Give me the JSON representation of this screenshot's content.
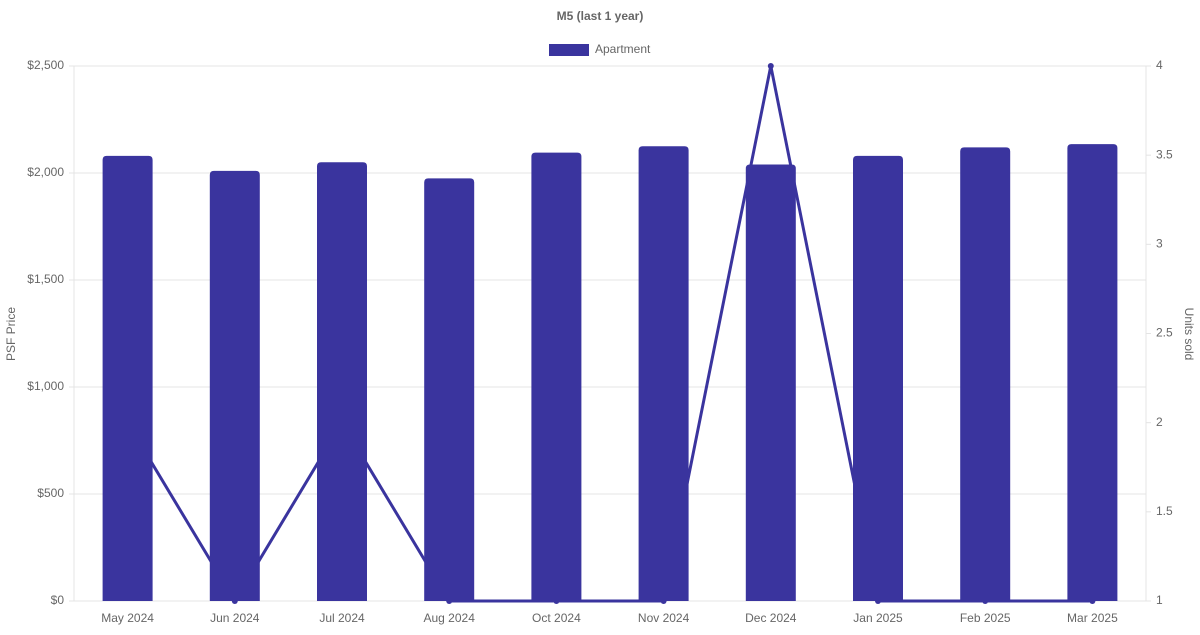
{
  "chart_data": {
    "type": "bar-line",
    "title": "M5 (last 1 year)",
    "categories": [
      "May 2024",
      "Jun 2024",
      "Jul 2024",
      "Aug 2024",
      "Oct 2024",
      "Nov 2024",
      "Dec 2024",
      "Jan 2025",
      "Feb 2025",
      "Mar 2025"
    ],
    "series": [
      {
        "name": "Apartment",
        "type": "bar",
        "color": "#3a349e",
        "values": [
          2080,
          2010,
          2050,
          1975,
          2095,
          2125,
          2040,
          2080,
          2120,
          2135
        ]
      },
      {
        "type": "line",
        "axis": "y2",
        "color": "#3a349e",
        "values": [
          2,
          1,
          2,
          1,
          1,
          1,
          4,
          1,
          1,
          1
        ]
      }
    ],
    "ylabel": "PSF Price",
    "y2label": "Units sold",
    "ylim": [
      0,
      2500
    ],
    "yticks": [
      {
        "value": 0,
        "label": "$0"
      },
      {
        "value": 500,
        "label": "$500"
      },
      {
        "value": 1000,
        "label": "$1,000"
      },
      {
        "value": 1500,
        "label": "$1,500"
      },
      {
        "value": 2000,
        "label": "$2,000"
      },
      {
        "value": 2500,
        "label": "$2,500"
      }
    ],
    "y2lim": [
      1,
      4
    ],
    "y2ticks": [
      1,
      1.5,
      2,
      2.5,
      3,
      3.5,
      4
    ],
    "grid": true,
    "legend": "top"
  }
}
